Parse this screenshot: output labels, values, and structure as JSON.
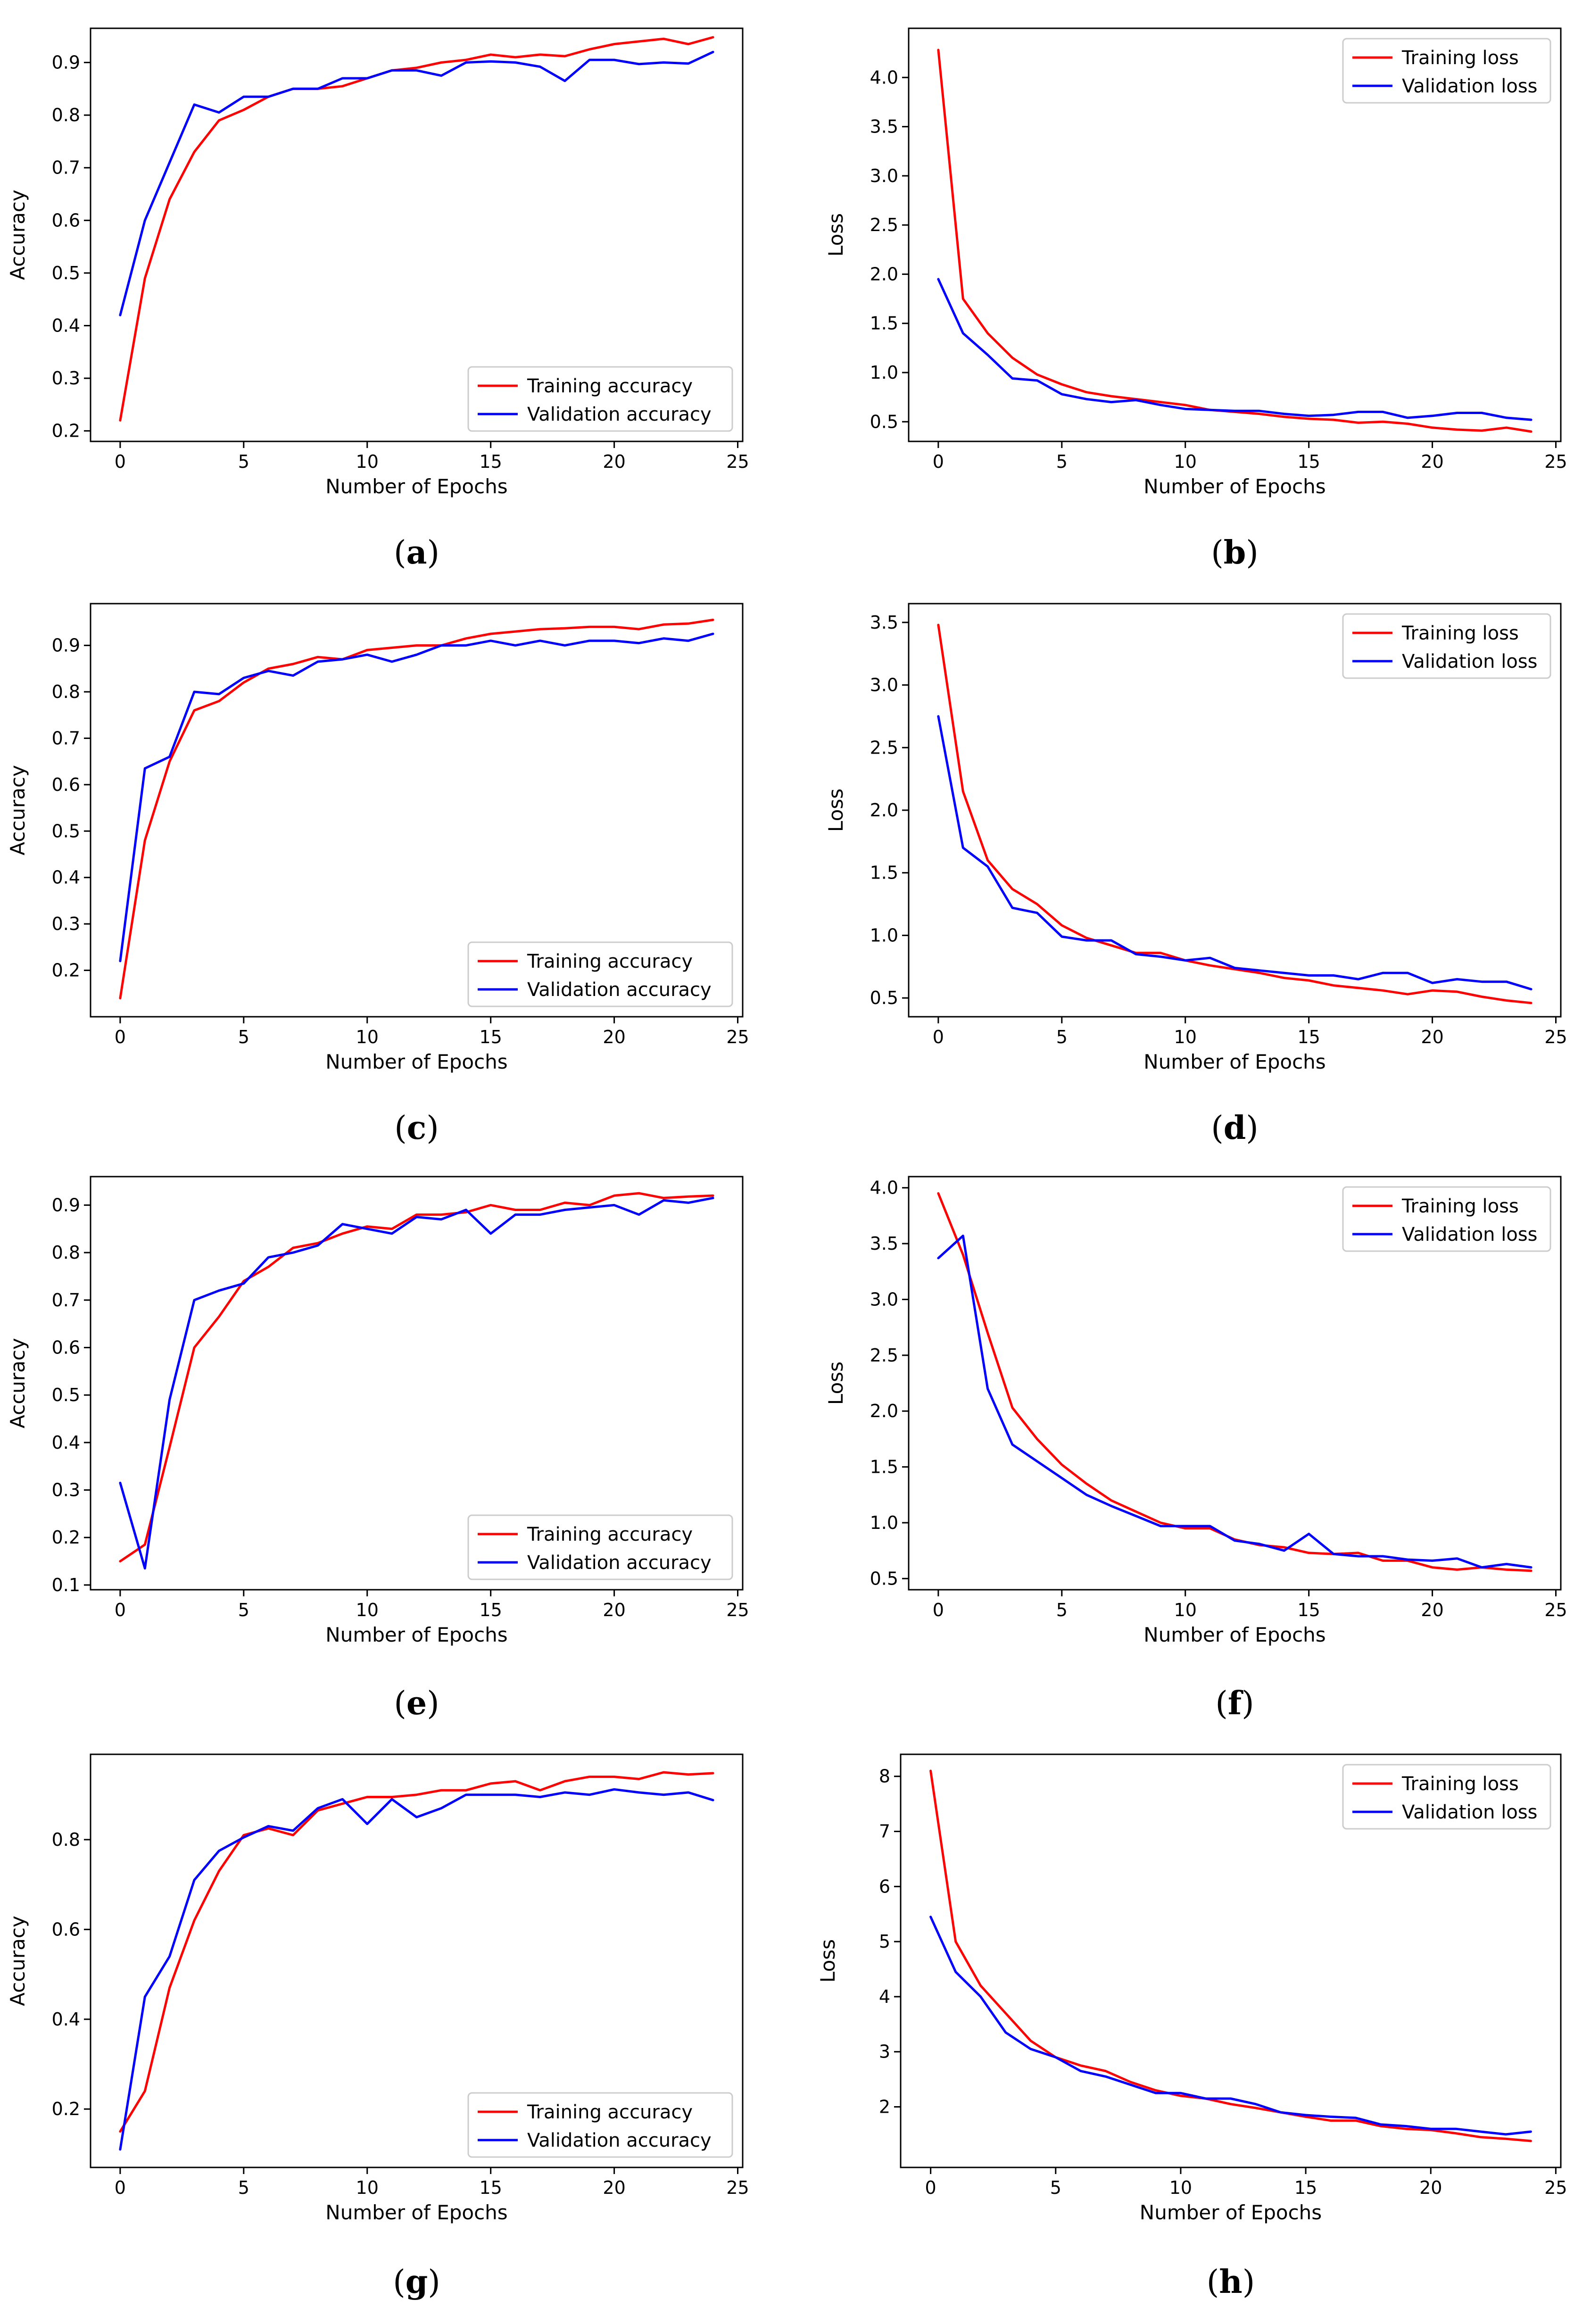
{
  "chart_data": [
    {
      "type": "line",
      "panel": "a",
      "caption": [
        "(",
        "a",
        ")"
      ],
      "xlabel": "Number of Epochs",
      "ylabel": "Accuracy",
      "xlim": [
        -1.2,
        25.2
      ],
      "ylim": [
        0.18,
        0.965
      ],
      "xticks": [
        0,
        5,
        10,
        15,
        20,
        25
      ],
      "yticks": [
        0.2,
        0.3,
        0.4,
        0.5,
        0.6,
        0.7,
        0.8,
        0.9
      ],
      "ytick_labels": [
        "0.2",
        "0.3",
        "0.4",
        "0.5",
        "0.6",
        "0.7",
        "0.8",
        "0.9"
      ],
      "legend_loc": "lower right",
      "series": [
        {
          "name": "Training accuracy",
          "color": "#ff0000",
          "values": [
            0.22,
            0.49,
            0.64,
            0.73,
            0.79,
            0.81,
            0.835,
            0.85,
            0.85,
            0.855,
            0.87,
            0.885,
            0.89,
            0.9,
            0.905,
            0.915,
            0.91,
            0.915,
            0.912,
            0.925,
            0.935,
            0.94,
            0.945,
            0.935,
            0.948
          ]
        },
        {
          "name": "Validation accuracy",
          "color": "#0000ff",
          "values": [
            0.42,
            0.6,
            0.71,
            0.82,
            0.805,
            0.835,
            0.835,
            0.85,
            0.85,
            0.87,
            0.87,
            0.885,
            0.885,
            0.875,
            0.9,
            0.902,
            0.9,
            0.892,
            0.865,
            0.905,
            0.905,
            0.897,
            0.9,
            0.898,
            0.92
          ]
        }
      ]
    },
    {
      "type": "line",
      "panel": "b",
      "caption": [
        "(",
        "b",
        ")"
      ],
      "xlabel": "Number of Epochs",
      "ylabel": "Loss",
      "xlim": [
        -1.2,
        25.2
      ],
      "ylim": [
        0.3,
        4.5
      ],
      "xticks": [
        0,
        5,
        10,
        15,
        20,
        25
      ],
      "yticks": [
        0.5,
        1.0,
        1.5,
        2.0,
        2.5,
        3.0,
        3.5,
        4.0
      ],
      "ytick_labels": [
        "0.5",
        "1.0",
        "1.5",
        "2.0",
        "2.5",
        "3.0",
        "3.5",
        "4.0"
      ],
      "legend_loc": "upper right",
      "series": [
        {
          "name": "Training loss",
          "color": "#ff0000",
          "values": [
            4.28,
            1.75,
            1.4,
            1.15,
            0.98,
            0.88,
            0.8,
            0.76,
            0.73,
            0.7,
            0.67,
            0.62,
            0.6,
            0.58,
            0.55,
            0.53,
            0.52,
            0.49,
            0.5,
            0.48,
            0.44,
            0.42,
            0.41,
            0.44,
            0.4
          ]
        },
        {
          "name": "Validation loss",
          "color": "#0000ff",
          "values": [
            1.95,
            1.4,
            1.18,
            0.94,
            0.92,
            0.78,
            0.73,
            0.7,
            0.72,
            0.67,
            0.63,
            0.62,
            0.61,
            0.61,
            0.58,
            0.56,
            0.57,
            0.6,
            0.6,
            0.54,
            0.56,
            0.59,
            0.59,
            0.54,
            0.52
          ]
        }
      ]
    },
    {
      "type": "line",
      "panel": "c",
      "caption": [
        "(",
        "c",
        ")"
      ],
      "xlabel": "Number of Epochs",
      "ylabel": "Accuracy",
      "xlim": [
        -1.2,
        25.2
      ],
      "ylim": [
        0.1,
        0.99
      ],
      "xticks": [
        0,
        5,
        10,
        15,
        20,
        25
      ],
      "yticks": [
        0.2,
        0.3,
        0.4,
        0.5,
        0.6,
        0.7,
        0.8,
        0.9
      ],
      "ytick_labels": [
        "0.2",
        "0.3",
        "0.4",
        "0.5",
        "0.6",
        "0.7",
        "0.8",
        "0.9"
      ],
      "legend_loc": "lower right",
      "series": [
        {
          "name": "Training accuracy",
          "color": "#ff0000",
          "values": [
            0.14,
            0.48,
            0.65,
            0.76,
            0.78,
            0.82,
            0.85,
            0.86,
            0.875,
            0.87,
            0.89,
            0.895,
            0.9,
            0.9,
            0.915,
            0.925,
            0.93,
            0.935,
            0.937,
            0.94,
            0.94,
            0.935,
            0.945,
            0.947,
            0.955
          ]
        },
        {
          "name": "Validation accuracy",
          "color": "#0000ff",
          "values": [
            0.22,
            0.635,
            0.66,
            0.8,
            0.795,
            0.83,
            0.845,
            0.835,
            0.865,
            0.87,
            0.88,
            0.865,
            0.88,
            0.9,
            0.9,
            0.91,
            0.9,
            0.91,
            0.9,
            0.91,
            0.91,
            0.905,
            0.915,
            0.91,
            0.925
          ]
        }
      ]
    },
    {
      "type": "line",
      "panel": "d",
      "caption": [
        "(",
        "d",
        ")"
      ],
      "xlabel": "Number of Epochs",
      "ylabel": "Loss",
      "xlim": [
        -1.2,
        25.2
      ],
      "ylim": [
        0.35,
        3.65
      ],
      "xticks": [
        0,
        5,
        10,
        15,
        20,
        25
      ],
      "yticks": [
        0.5,
        1.0,
        1.5,
        2.0,
        2.5,
        3.0,
        3.5
      ],
      "ytick_labels": [
        "0.5",
        "1.0",
        "1.5",
        "2.0",
        "2.5",
        "3.0",
        "3.5"
      ],
      "legend_loc": "upper right",
      "series": [
        {
          "name": "Training loss",
          "color": "#ff0000",
          "values": [
            3.48,
            2.15,
            1.6,
            1.37,
            1.25,
            1.08,
            0.98,
            0.92,
            0.86,
            0.86,
            0.8,
            0.76,
            0.73,
            0.7,
            0.66,
            0.64,
            0.6,
            0.58,
            0.56,
            0.53,
            0.56,
            0.55,
            0.51,
            0.48,
            0.46
          ]
        },
        {
          "name": "Validation loss",
          "color": "#0000ff",
          "values": [
            2.75,
            1.7,
            1.55,
            1.22,
            1.18,
            0.99,
            0.96,
            0.96,
            0.85,
            0.83,
            0.8,
            0.82,
            0.74,
            0.72,
            0.7,
            0.68,
            0.68,
            0.65,
            0.7,
            0.7,
            0.62,
            0.65,
            0.63,
            0.63,
            0.57
          ]
        }
      ]
    },
    {
      "type": "line",
      "panel": "e",
      "caption": [
        "(",
        "e",
        ")"
      ],
      "xlabel": "Number of Epochs",
      "ylabel": "Accuracy",
      "xlim": [
        -1.2,
        25.2
      ],
      "ylim": [
        0.09,
        0.96
      ],
      "xticks": [
        0,
        5,
        10,
        15,
        20,
        25
      ],
      "yticks": [
        0.1,
        0.2,
        0.3,
        0.4,
        0.5,
        0.6,
        0.7,
        0.8,
        0.9
      ],
      "ytick_labels": [
        "0.1",
        "0.2",
        "0.3",
        "0.4",
        "0.5",
        "0.6",
        "0.7",
        "0.8",
        "0.9"
      ],
      "legend_loc": "lower right",
      "series": [
        {
          "name": "Training accuracy",
          "color": "#ff0000",
          "values": [
            0.15,
            0.185,
            0.39,
            0.6,
            0.665,
            0.74,
            0.77,
            0.81,
            0.82,
            0.84,
            0.855,
            0.85,
            0.88,
            0.88,
            0.885,
            0.9,
            0.89,
            0.89,
            0.905,
            0.9,
            0.92,
            0.925,
            0.915,
            0.918,
            0.92
          ]
        },
        {
          "name": "Validation accuracy",
          "color": "#0000ff",
          "values": [
            0.315,
            0.135,
            0.49,
            0.7,
            0.72,
            0.735,
            0.79,
            0.8,
            0.815,
            0.86,
            0.85,
            0.84,
            0.875,
            0.87,
            0.89,
            0.84,
            0.88,
            0.88,
            0.89,
            0.895,
            0.9,
            0.88,
            0.91,
            0.905,
            0.915
          ]
        }
      ]
    },
    {
      "type": "line",
      "panel": "f",
      "caption": [
        "(",
        "f",
        ")"
      ],
      "xlabel": "Number of Epochs",
      "ylabel": "Loss",
      "xlim": [
        -1.2,
        25.2
      ],
      "ylim": [
        0.4,
        4.1
      ],
      "xticks": [
        0,
        5,
        10,
        15,
        20,
        25
      ],
      "yticks": [
        0.5,
        1.0,
        1.5,
        2.0,
        2.5,
        3.0,
        3.5,
        4.0
      ],
      "ytick_labels": [
        "0.5",
        "1.0",
        "1.5",
        "2.0",
        "2.5",
        "3.0",
        "3.5",
        "4.0"
      ],
      "legend_loc": "upper right",
      "series": [
        {
          "name": "Training loss",
          "color": "#ff0000",
          "values": [
            3.95,
            3.4,
            2.7,
            2.03,
            1.75,
            1.52,
            1.35,
            1.2,
            1.1,
            1.0,
            0.95,
            0.95,
            0.85,
            0.8,
            0.78,
            0.73,
            0.72,
            0.73,
            0.66,
            0.66,
            0.6,
            0.58,
            0.6,
            0.58,
            0.57
          ]
        },
        {
          "name": "Validation loss",
          "color": "#0000ff",
          "values": [
            3.37,
            3.57,
            2.2,
            1.7,
            1.55,
            1.4,
            1.25,
            1.15,
            1.06,
            0.97,
            0.97,
            0.97,
            0.84,
            0.81,
            0.75,
            0.9,
            0.72,
            0.7,
            0.7,
            0.67,
            0.66,
            0.68,
            0.6,
            0.63,
            0.6
          ]
        }
      ]
    },
    {
      "type": "line",
      "panel": "g",
      "caption": [
        "(",
        "g",
        ")"
      ],
      "xlabel": "Number of Epochs",
      "ylabel": "Accuracy",
      "xlim": [
        -1.2,
        25.2
      ],
      "ylim": [
        0.07,
        0.99
      ],
      "xticks": [
        0,
        5,
        10,
        15,
        20,
        25
      ],
      "yticks": [
        0.2,
        0.4,
        0.6,
        0.8
      ],
      "ytick_labels": [
        "0.2",
        "0.4",
        "0.6",
        "0.8"
      ],
      "legend_loc": "lower right",
      "series": [
        {
          "name": "Training accuracy",
          "color": "#ff0000",
          "values": [
            0.15,
            0.24,
            0.47,
            0.62,
            0.73,
            0.81,
            0.825,
            0.81,
            0.865,
            0.88,
            0.895,
            0.895,
            0.9,
            0.91,
            0.91,
            0.925,
            0.93,
            0.91,
            0.93,
            0.94,
            0.94,
            0.935,
            0.95,
            0.945,
            0.948
          ]
        },
        {
          "name": "Validation accuracy",
          "color": "#0000ff",
          "values": [
            0.11,
            0.45,
            0.54,
            0.71,
            0.775,
            0.805,
            0.83,
            0.82,
            0.87,
            0.89,
            0.835,
            0.89,
            0.85,
            0.87,
            0.9,
            0.9,
            0.9,
            0.895,
            0.905,
            0.9,
            0.912,
            0.905,
            0.9,
            0.905,
            0.888
          ]
        }
      ]
    },
    {
      "type": "line",
      "panel": "h",
      "caption": [
        "(",
        "h",
        ")"
      ],
      "xlabel": "Number of Epochs",
      "ylabel": "Loss",
      "xlim": [
        -1.2,
        25.2
      ],
      "ylim": [
        0.9,
        8.4
      ],
      "xticks": [
        0,
        5,
        10,
        15,
        20,
        25
      ],
      "yticks": [
        2,
        3,
        4,
        5,
        6,
        7,
        8
      ],
      "ytick_labels": [
        "2",
        "3",
        "4",
        "5",
        "6",
        "7",
        "8"
      ],
      "legend_loc": "upper right",
      "series": [
        {
          "name": "Training loss",
          "color": "#ff0000",
          "values": [
            8.1,
            5.0,
            4.2,
            3.7,
            3.2,
            2.9,
            2.75,
            2.65,
            2.45,
            2.3,
            2.2,
            2.15,
            2.05,
            1.98,
            1.9,
            1.82,
            1.75,
            1.75,
            1.65,
            1.6,
            1.58,
            1.52,
            1.45,
            1.42,
            1.38
          ]
        },
        {
          "name": "Validation loss",
          "color": "#0000ff",
          "values": [
            5.45,
            4.45,
            4.0,
            3.35,
            3.05,
            2.9,
            2.65,
            2.55,
            2.4,
            2.25,
            2.25,
            2.15,
            2.15,
            2.05,
            1.9,
            1.85,
            1.82,
            1.8,
            1.68,
            1.65,
            1.6,
            1.6,
            1.55,
            1.5,
            1.55
          ]
        }
      ]
    }
  ]
}
